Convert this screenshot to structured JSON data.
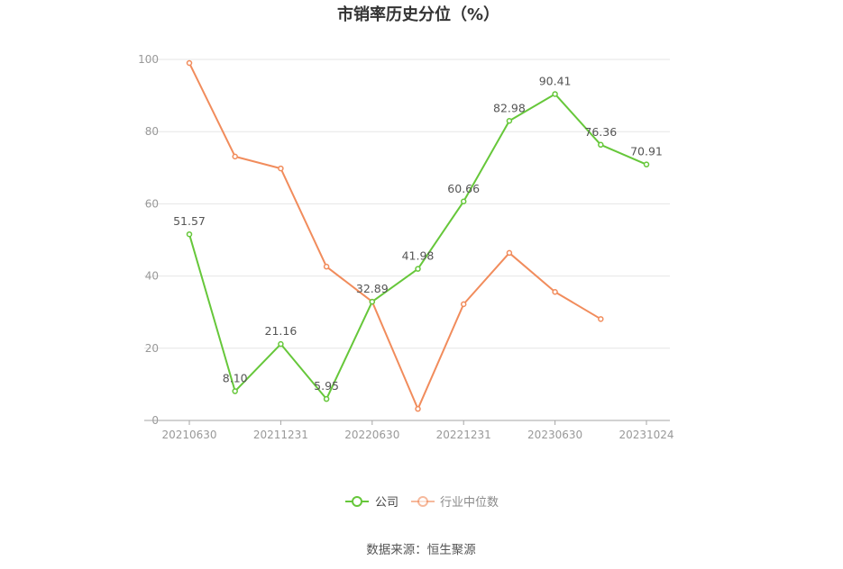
{
  "chart_data": {
    "type": "line",
    "title": "市销率历史分位（%）",
    "xlabel": "",
    "ylabel": "",
    "categories": [
      "20210630",
      "",
      "20211231",
      "",
      "20220630",
      "",
      "20221231",
      "",
      "20230630",
      "",
      "20231024"
    ],
    "ylim": [
      0,
      100
    ],
    "yticks": [
      0,
      20,
      40,
      60,
      80,
      100
    ],
    "grid": true,
    "legend": "bottom-center",
    "series": [
      {
        "name": "公司",
        "color": "#66c73a",
        "values": [
          51.57,
          8.1,
          21.16,
          5.95,
          32.89,
          41.98,
          60.66,
          82.98,
          90.41,
          76.36,
          70.91
        ],
        "data_labels": [
          "51.57",
          "8.10",
          "21.16",
          "5.95",
          "32.89",
          "41.98",
          "60.66",
          "82.98",
          "90.41",
          "76.36",
          "70.91"
        ]
      },
      {
        "name": "行业中位数",
        "color": "#f18c5c",
        "values": [
          99.0,
          73.1,
          69.8,
          42.6,
          32.9,
          3.2,
          32.2,
          46.4,
          35.6,
          28.1,
          null
        ]
      }
    ]
  },
  "source": "数据来源：恒生聚源"
}
